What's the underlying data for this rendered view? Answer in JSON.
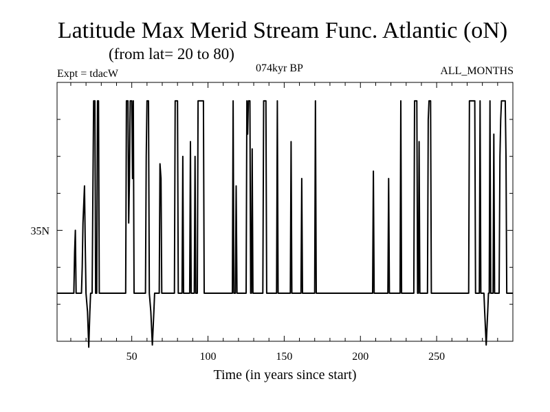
{
  "header": {
    "title": "Latitude Max Merid Stream Func. Atlantic (oN)",
    "subtitle": "(from lat= 20 to 80)",
    "experiment": "Expt = tdacW",
    "period": "074kyr BP",
    "months": "ALL_MONTHS"
  },
  "chart_data": {
    "type": "line",
    "title": "Latitude Max Merid Stream Func. Atlantic (oN)",
    "subtitle": "(from lat= 20 to 80)",
    "xlabel": "Time (in years since start)",
    "ylabel": "",
    "xlim": [
      1,
      300
    ],
    "ylim": [
      20,
      55
    ],
    "x_ticks": [
      50,
      100,
      150,
      200,
      250
    ],
    "x_tick_labels": [
      "50",
      "100",
      "150",
      "200",
      "250"
    ],
    "y_ticks": [
      35
    ],
    "y_tick_labels": [
      "35N"
    ],
    "grid": false,
    "legend": "none",
    "series": [
      {
        "color": "#000000",
        "points": [
          [
            1,
            26.5
          ],
          [
            12,
            26.5
          ],
          [
            12.5,
            32
          ],
          [
            13,
            35
          ],
          [
            13.5,
            26.5
          ],
          [
            17,
            26.5
          ],
          [
            17.5,
            30
          ],
          [
            18,
            36
          ],
          [
            19,
            41
          ],
          [
            19.5,
            33
          ],
          [
            20,
            26.5
          ],
          [
            21,
            24
          ],
          [
            21.8,
            19.2
          ],
          [
            22.5,
            24
          ],
          [
            23,
            26.5
          ],
          [
            24,
            26.5
          ],
          [
            24.5,
            40
          ],
          [
            25,
            52.5
          ],
          [
            25.8,
            52.5
          ],
          [
            26.3,
            26.5
          ],
          [
            27,
            26.5
          ],
          [
            27.5,
            52.5
          ],
          [
            28.2,
            52.5
          ],
          [
            28.7,
            26.5
          ],
          [
            46,
            26.5
          ],
          [
            46.5,
            52.5
          ],
          [
            47.5,
            52.5
          ],
          [
            48,
            36
          ],
          [
            48.5,
            42
          ],
          [
            49,
            52.5
          ],
          [
            50,
            52.5
          ],
          [
            50.5,
            42
          ],
          [
            51,
            52.5
          ],
          [
            51.5,
            26.5
          ],
          [
            59,
            26.5
          ],
          [
            59.5,
            45
          ],
          [
            60,
            52.5
          ],
          [
            61,
            52.5
          ],
          [
            61.5,
            26.5
          ],
          [
            62.5,
            24
          ],
          [
            63.5,
            19.5
          ],
          [
            64.5,
            24
          ],
          [
            65,
            26.5
          ],
          [
            68,
            26.5
          ],
          [
            68.5,
            44
          ],
          [
            69.2,
            42
          ],
          [
            69.7,
            26.5
          ],
          [
            78,
            26.5
          ],
          [
            78.5,
            52.5
          ],
          [
            80,
            52.5
          ],
          [
            80.5,
            26.5
          ],
          [
            83,
            26.5
          ],
          [
            83.5,
            45
          ],
          [
            84,
            26.5
          ],
          [
            88,
            26.5
          ],
          [
            88.5,
            47
          ],
          [
            89,
            26.5
          ],
          [
            91,
            26.5
          ],
          [
            91.5,
            45
          ],
          [
            92,
            26.5
          ],
          [
            93,
            26.5
          ],
          [
            93.5,
            52.5
          ],
          [
            97,
            52.5
          ],
          [
            97.5,
            26.5
          ],
          [
            116,
            26.5
          ],
          [
            116.5,
            52.5
          ],
          [
            117,
            26.5
          ],
          [
            118,
            26.5
          ],
          [
            118.5,
            41
          ],
          [
            119,
            26.5
          ],
          [
            125,
            26.5
          ],
          [
            125.5,
            52.5
          ],
          [
            126,
            48
          ],
          [
            126.5,
            52.5
          ],
          [
            127.5,
            52.5
          ],
          [
            128,
            26.5
          ],
          [
            128.5,
            26.5
          ],
          [
            129,
            46
          ],
          [
            129.5,
            26.5
          ],
          [
            136,
            26.5
          ],
          [
            136.5,
            52.5
          ],
          [
            138,
            52.5
          ],
          [
            138.5,
            26.5
          ],
          [
            145,
            26.5
          ],
          [
            145.5,
            52.5
          ],
          [
            146,
            26.5
          ],
          [
            154,
            26.5
          ],
          [
            154.5,
            47
          ],
          [
            155,
            26.5
          ],
          [
            161,
            26.5
          ],
          [
            161.5,
            42
          ],
          [
            162,
            26.5
          ],
          [
            170,
            26.5
          ],
          [
            170.5,
            52.5
          ],
          [
            171,
            26.5
          ],
          [
            208,
            26.5
          ],
          [
            208.5,
            43
          ],
          [
            209,
            26.5
          ],
          [
            218,
            26.5
          ],
          [
            218.5,
            42
          ],
          [
            219,
            26.5
          ],
          [
            226,
            26.5
          ],
          [
            226.5,
            52.5
          ],
          [
            227,
            26.5
          ],
          [
            235,
            26.5
          ],
          [
            235.5,
            52.5
          ],
          [
            237,
            52.5
          ],
          [
            237.5,
            26.5
          ],
          [
            238,
            26.5
          ],
          [
            238.5,
            47
          ],
          [
            239,
            26.5
          ],
          [
            244,
            26.5
          ],
          [
            244.5,
            50
          ],
          [
            245,
            52.5
          ],
          [
            246,
            52.5
          ],
          [
            246.5,
            26.5
          ],
          [
            271,
            26.5
          ],
          [
            271.5,
            52.5
          ],
          [
            275,
            52.5
          ],
          [
            275.5,
            26.5
          ],
          [
            278,
            26.5
          ],
          [
            278.5,
            52.5
          ],
          [
            279,
            26.5
          ],
          [
            281,
            26.5
          ],
          [
            281.5,
            24
          ],
          [
            282.5,
            19.5
          ],
          [
            283.5,
            24
          ],
          [
            284,
            26.5
          ],
          [
            284.5,
            26.5
          ],
          [
            285,
            52.5
          ],
          [
            285.5,
            26.5
          ],
          [
            287,
            26.5
          ],
          [
            287.5,
            48
          ],
          [
            288,
            26.5
          ],
          [
            291,
            26.5
          ],
          [
            291.5,
            45
          ],
          [
            292,
            50
          ],
          [
            292.5,
            52.5
          ],
          [
            295,
            52.5
          ],
          [
            295.5,
            45
          ],
          [
            296,
            26.5
          ],
          [
            300,
            26.5
          ]
        ]
      }
    ]
  }
}
